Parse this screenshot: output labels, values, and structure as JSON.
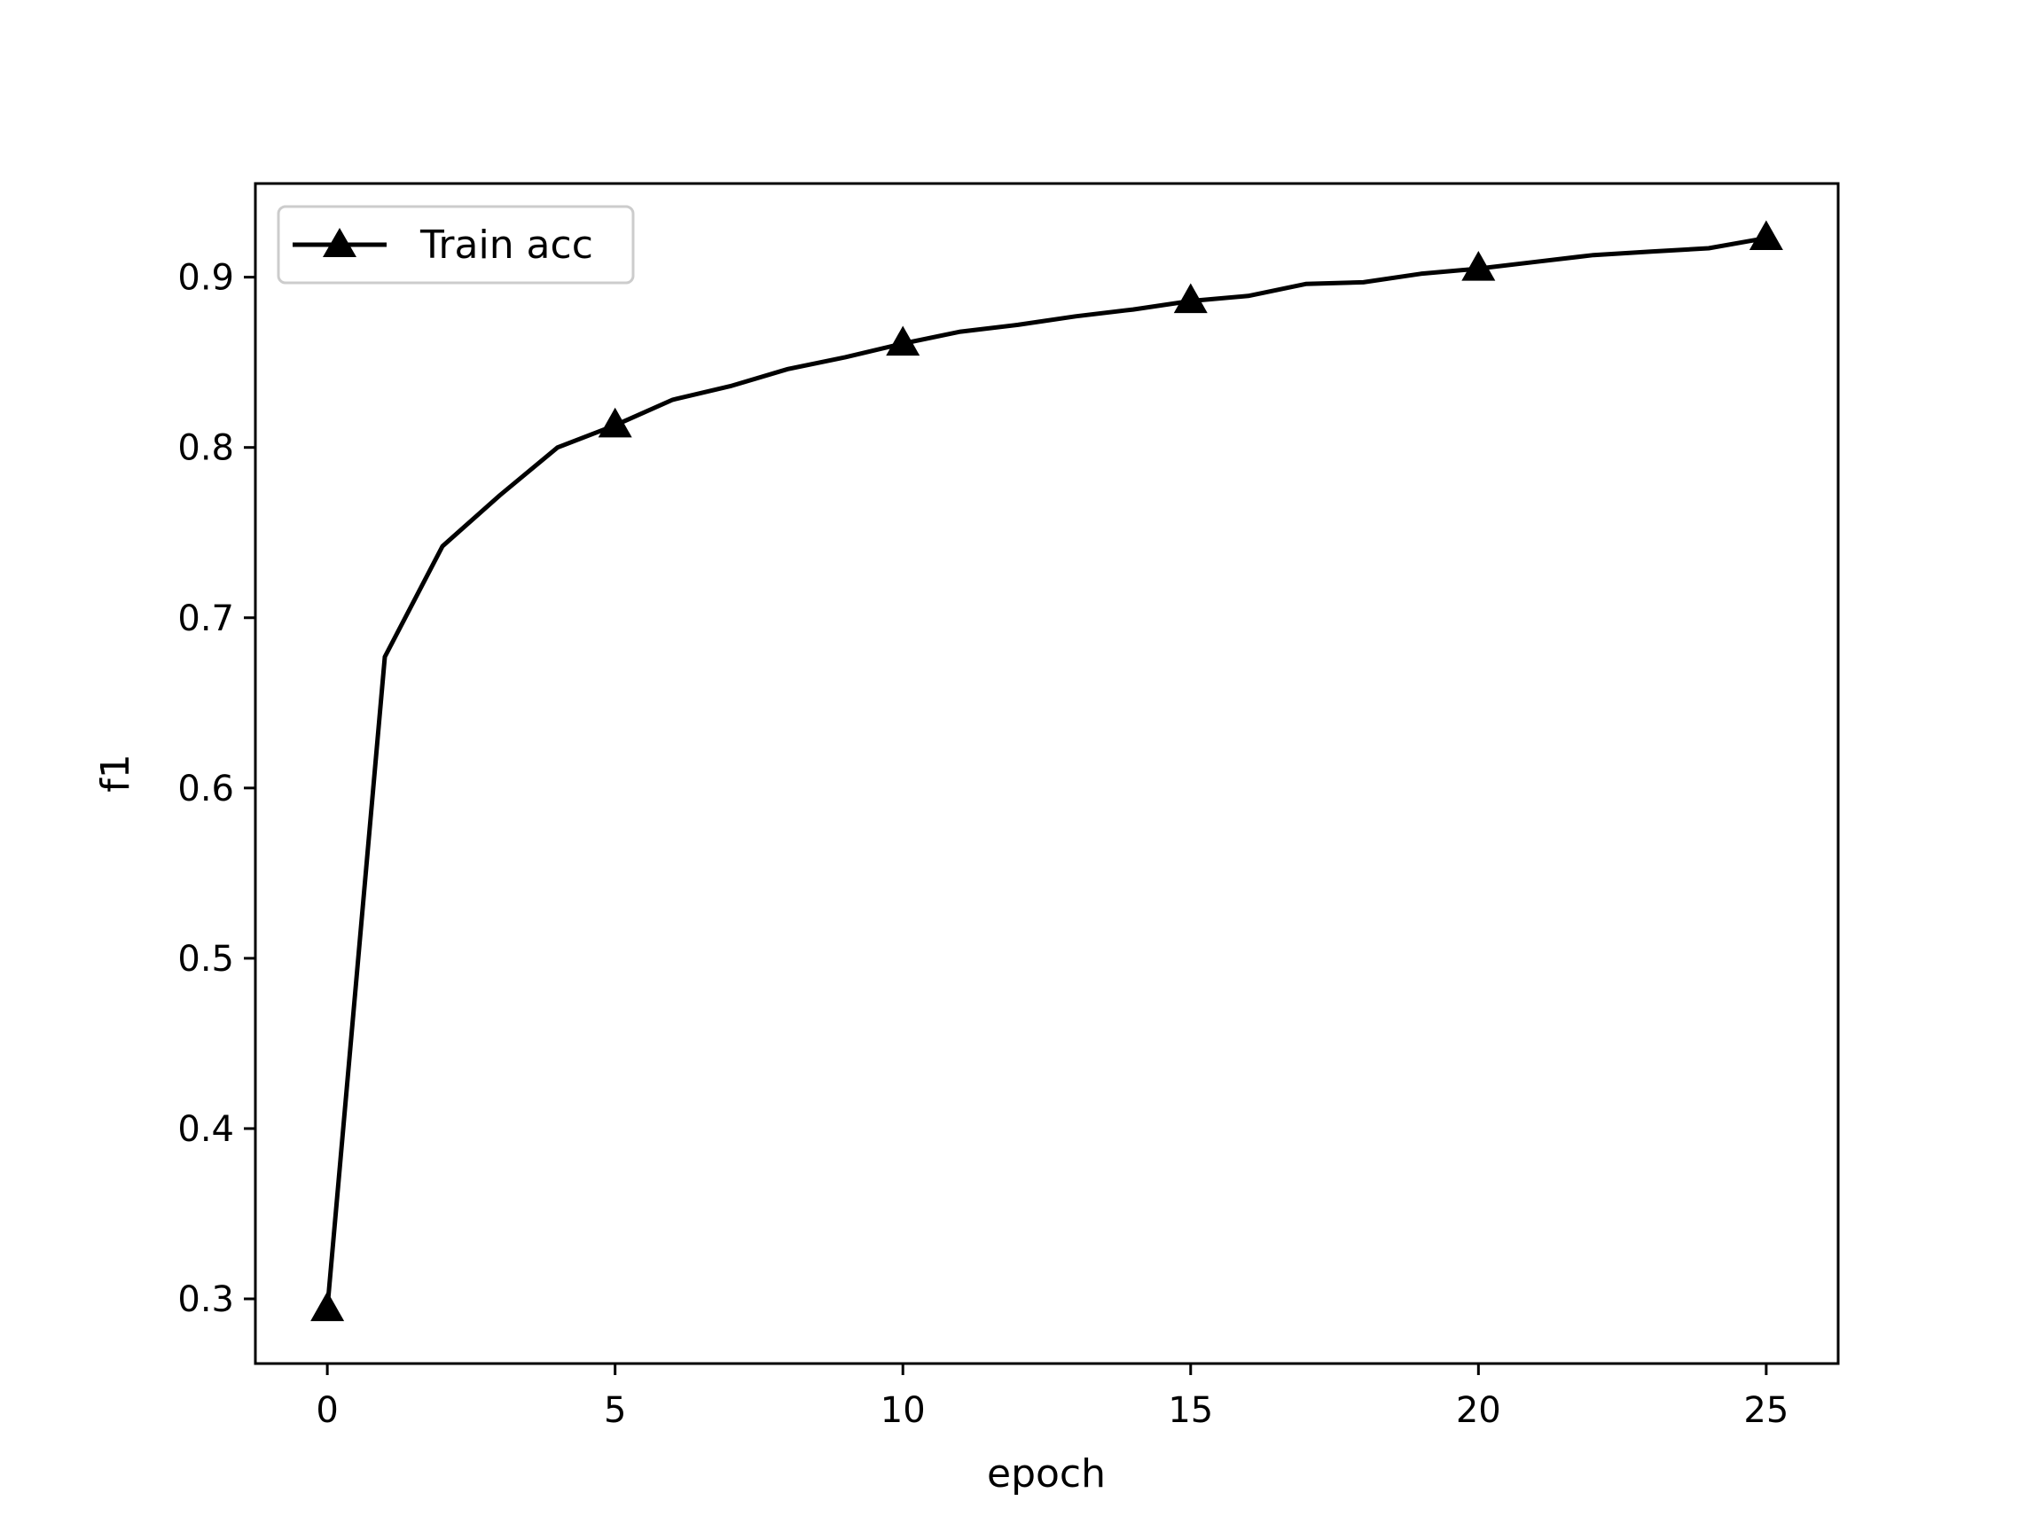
{
  "chart_data": {
    "type": "line",
    "title": "",
    "xlabel": "epoch",
    "ylabel": "f1",
    "xlim": [
      -1.25,
      26.25
    ],
    "ylim": [
      0.262,
      0.955
    ],
    "xticks": [
      0,
      5,
      10,
      15,
      20,
      25
    ],
    "yticks": [
      0.3,
      0.4,
      0.5,
      0.6,
      0.7,
      0.8,
      0.9
    ],
    "xtick_labels": [
      "0",
      "5",
      "10",
      "15",
      "20",
      "25"
    ],
    "ytick_labels": [
      "0.3",
      "0.4",
      "0.5",
      "0.6",
      "0.7",
      "0.8",
      "0.9"
    ],
    "grid": false,
    "legend_position": "top-left",
    "series": [
      {
        "name": "Train acc",
        "color": "#000000",
        "marker": "triangle-up",
        "marker_every": 5,
        "x": [
          0,
          1,
          2,
          3,
          4,
          5,
          6,
          7,
          8,
          9,
          10,
          11,
          12,
          13,
          14,
          15,
          16,
          17,
          18,
          19,
          20,
          21,
          22,
          23,
          24,
          25
        ],
        "y": [
          0.294,
          0.677,
          0.742,
          0.772,
          0.8,
          0.813,
          0.828,
          0.836,
          0.846,
          0.853,
          0.861,
          0.868,
          0.872,
          0.877,
          0.881,
          0.886,
          0.889,
          0.896,
          0.897,
          0.902,
          0.905,
          0.909,
          0.913,
          0.915,
          0.917,
          0.923
        ]
      }
    ]
  }
}
